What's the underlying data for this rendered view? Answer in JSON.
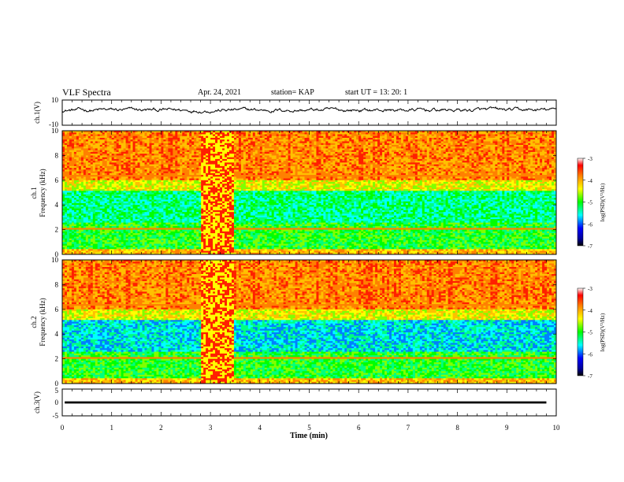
{
  "header": {
    "title": "VLF Spectra",
    "date": "Apr. 24, 2021",
    "station": "station= KAP",
    "start": "start UT =  13: 20: 1"
  },
  "chart_data": [
    {
      "type": "line",
      "title": "",
      "ylabel": "ch.1(V)",
      "ylim": [
        -10,
        10
      ],
      "yticks": [
        "10",
        "-10"
      ],
      "xlim": [
        0,
        10
      ],
      "note": "waveform trace, mean approx 2 V, fluctuations approx ±3 V"
    },
    {
      "type": "heatmap",
      "label": "ch.1",
      "ylabel": "Frequency (kHz)",
      "ylim": [
        0,
        10
      ],
      "yticks": [
        "0",
        "2",
        "4",
        "6",
        "8",
        "10"
      ],
      "xlim": [
        0,
        10
      ],
      "colorbar": {
        "label": "log(PSD)(V²/Hz)",
        "range": [
          -7,
          -3
        ],
        "ticks": [
          "-3",
          "-4",
          "-5",
          "-6",
          "-7"
        ]
      }
    },
    {
      "type": "heatmap",
      "label": "ch.2",
      "ylabel": "Frequency (kHz)",
      "ylim": [
        0,
        10
      ],
      "yticks": [
        "0",
        "2",
        "4",
        "6",
        "8",
        "10"
      ],
      "xlim": [
        0,
        10
      ],
      "colorbar": {
        "label": "log(PSD)(V²/Hz)",
        "range": [
          -7,
          -3
        ],
        "ticks": [
          "-3",
          "-4",
          "-5",
          "-6",
          "-7"
        ]
      }
    },
    {
      "type": "line",
      "ylabel": "ch.3(V)",
      "ylim": [
        -5,
        5
      ],
      "yticks": [
        "5",
        "0",
        "-5"
      ],
      "xlim": [
        0,
        10
      ],
      "xticks": [
        "0",
        "1",
        "2",
        "3",
        "4",
        "5",
        "6",
        "7",
        "8",
        "9",
        "10"
      ],
      "xlabel": "Time (min)",
      "note": "near-constant band around 0 V spanning x approx 0.05 to 9.8 min"
    }
  ]
}
